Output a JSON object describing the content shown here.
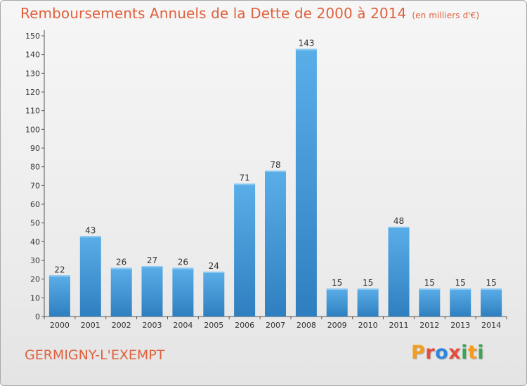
{
  "header": {
    "title": "Remboursements Annuels de la Dette de 2000 à 2014",
    "unit": "(en milliers d'€)"
  },
  "footer": {
    "commune": "GERMIGNY-L'EXEMPT",
    "brand": "Proxiti",
    "brand_colors": [
      "#f39c1f",
      "#e74c3c",
      "#2e86de",
      "#e74c3c",
      "#3aa655",
      "#f39c1f",
      "#3aa655"
    ]
  },
  "chart_data": {
    "type": "bar",
    "categories": [
      "2000",
      "2001",
      "2002",
      "2003",
      "2004",
      "2005",
      "2006",
      "2007",
      "2008",
      "2009",
      "2010",
      "2011",
      "2012",
      "2013",
      "2014"
    ],
    "values": [
      22,
      43,
      26,
      27,
      26,
      24,
      71,
      78,
      143,
      15,
      15,
      48,
      15,
      15,
      15
    ],
    "data_labels": [
      "22",
      "43",
      "26",
      "27",
      "26",
      "24",
      "71",
      "78",
      "143",
      "15",
      "15",
      "48",
      "15",
      "15",
      "15"
    ],
    "title": "Remboursements Annuels de la Dette de 2000 à 2014",
    "xlabel": "",
    "ylabel": "",
    "ylim": [
      0,
      150
    ],
    "yticks": [
      0,
      10,
      20,
      30,
      40,
      50,
      60,
      70,
      80,
      90,
      100,
      110,
      120,
      130,
      140,
      150
    ],
    "grid": false,
    "bar_color_light": "#5aaee8",
    "bar_color_dark": "#2f7fc0",
    "axis_color": "#555555",
    "text_color": "#333333"
  }
}
